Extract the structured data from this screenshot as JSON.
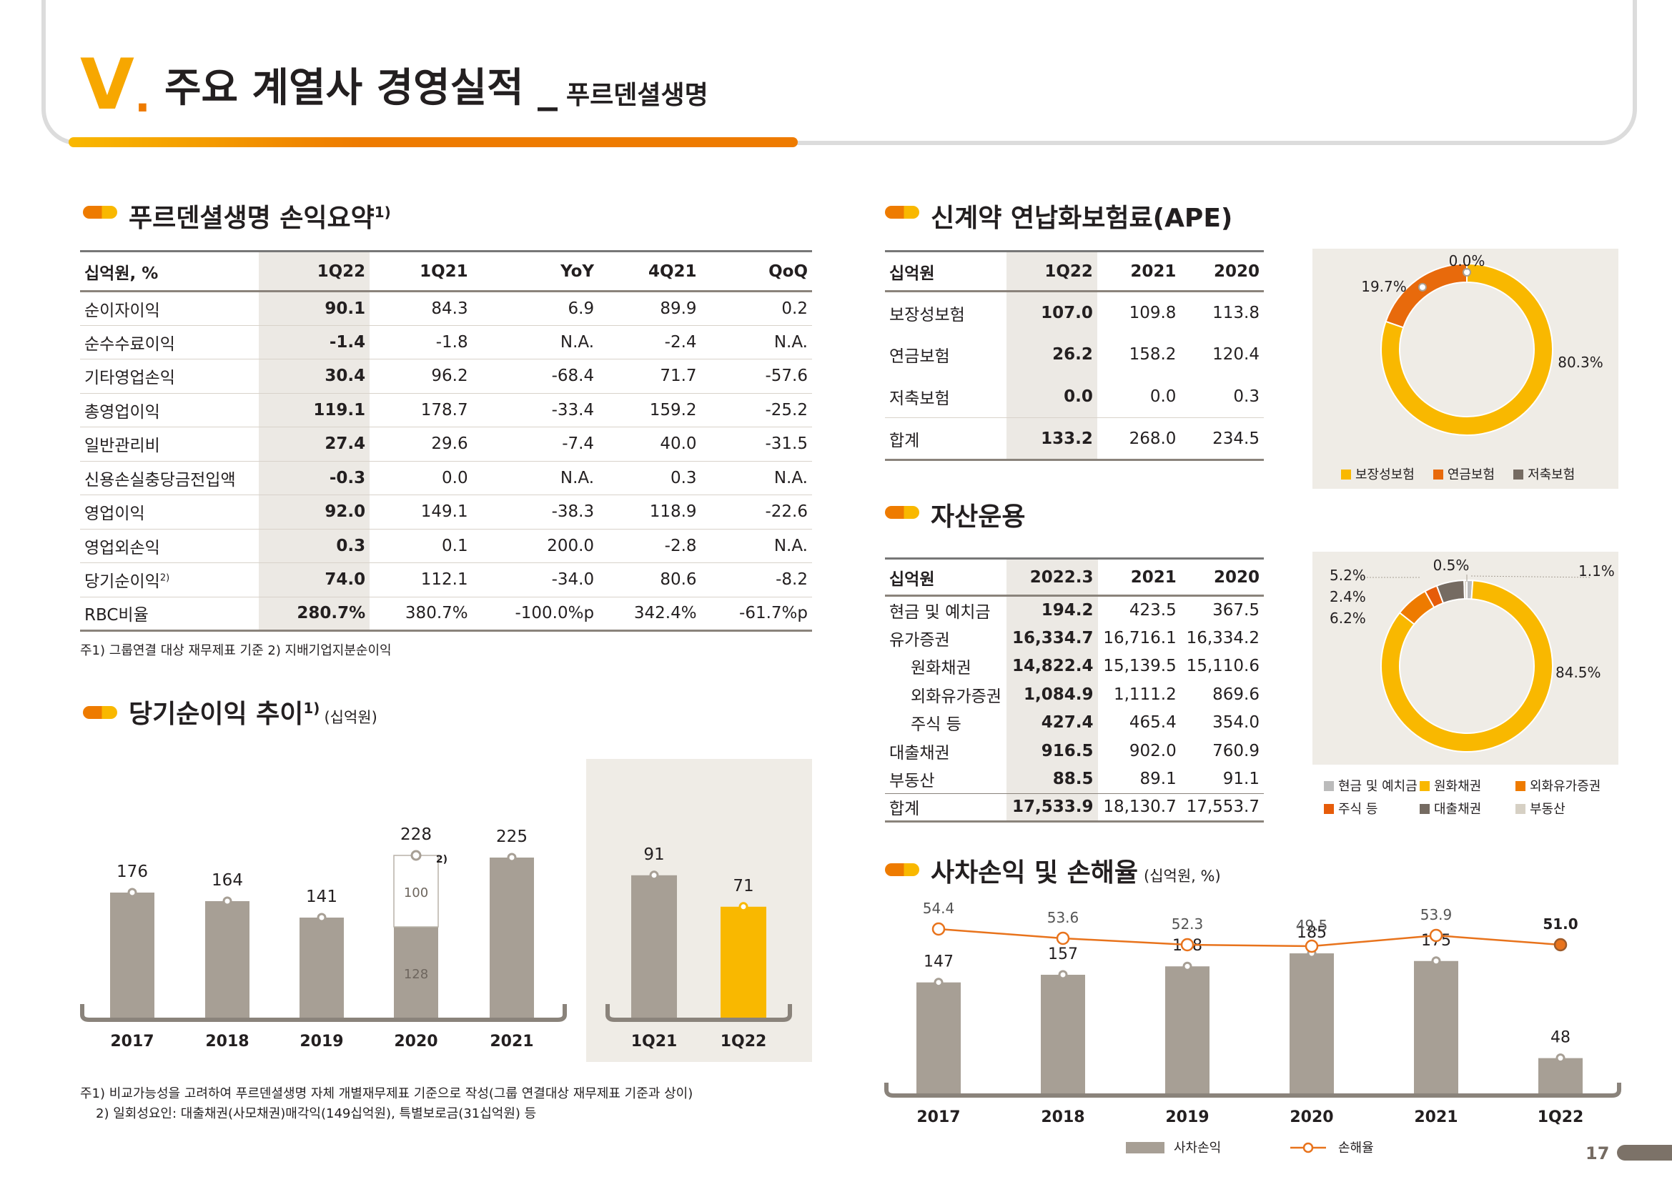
{
  "header": {
    "roman": "V",
    "roman_dot": ".",
    "title": "주요 계열사 경영실적",
    "dash": "_",
    "subtitle": "푸르덴셜생명"
  },
  "pl": {
    "title": "푸르덴셜생명 손익요약",
    "title_sup": "1)",
    "columns": [
      "십억원, %",
      "1Q22",
      "1Q21",
      "YoY",
      "4Q21",
      "QoQ"
    ],
    "rows": [
      {
        "label": "순이자이익",
        "sup": "",
        "v": [
          "90.1",
          "84.3",
          "6.9",
          "89.9",
          "0.2"
        ]
      },
      {
        "label": "순수수료이익",
        "sup": "",
        "v": [
          "-1.4",
          "-1.8",
          "N.A.",
          "-2.4",
          "N.A."
        ]
      },
      {
        "label": "기타영업손익",
        "sup": "",
        "v": [
          "30.4",
          "96.2",
          "-68.4",
          "71.7",
          "-57.6"
        ]
      },
      {
        "label": "총영업이익",
        "sup": "",
        "v": [
          "119.1",
          "178.7",
          "-33.4",
          "159.2",
          "-25.2"
        ]
      },
      {
        "label": "일반관리비",
        "sup": "",
        "v": [
          "27.4",
          "29.6",
          "-7.4",
          "40.0",
          "-31.5"
        ]
      },
      {
        "label": "신용손실충당금전입액",
        "sup": "",
        "v": [
          "-0.3",
          "0.0",
          "N.A.",
          "0.3",
          "N.A."
        ]
      },
      {
        "label": "영업이익",
        "sup": "",
        "v": [
          "92.0",
          "149.1",
          "-38.3",
          "118.9",
          "-22.6"
        ]
      },
      {
        "label": "영업외손익",
        "sup": "",
        "v": [
          "0.3",
          "0.1",
          "200.0",
          "-2.8",
          "N.A."
        ]
      },
      {
        "label": "당기순이익",
        "sup": "2)",
        "v": [
          "74.0",
          "112.1",
          "-34.0",
          "80.6",
          "-8.2"
        ]
      },
      {
        "label": "RBC비율",
        "sup": "",
        "v": [
          "280.7%",
          "380.7%",
          "-100.0%p",
          "342.4%",
          "-61.7%p"
        ]
      }
    ],
    "note": "주1) 그룹연결 대상 재무제표 기준   2) 지배기업지분순이익"
  },
  "ape": {
    "title": "신계약 연납화보험료(APE)",
    "columns": [
      "십억원",
      "1Q22",
      "2021",
      "2020"
    ],
    "rows": [
      {
        "label": "보장성보험",
        "v": [
          "107.0",
          "109.8",
          "113.8"
        ]
      },
      {
        "label": "연금보험",
        "v": [
          "26.2",
          "158.2",
          "120.4"
        ]
      },
      {
        "label": "저축보험",
        "v": [
          "0.0",
          "0.0",
          "0.3"
        ]
      },
      {
        "label": "합계",
        "v": [
          "133.2",
          "268.0",
          "234.5"
        ]
      }
    ]
  },
  "asset": {
    "title": "자산운용",
    "columns": [
      "십억원",
      "2022.3",
      "2021",
      "2020"
    ],
    "rows": [
      {
        "label": "현금 및 예치금",
        "indent": false,
        "v": [
          "194.2",
          "423.5",
          "367.5"
        ]
      },
      {
        "label": "유가증권",
        "indent": false,
        "v": [
          "16,334.7",
          "16,716.1",
          "16,334.2"
        ]
      },
      {
        "label": "원화채권",
        "indent": true,
        "v": [
          "14,822.4",
          "15,139.5",
          "15,110.6"
        ]
      },
      {
        "label": "외화유가증권",
        "indent": true,
        "v": [
          "1,084.9",
          "1,111.2",
          "869.6"
        ]
      },
      {
        "label": "주식 등",
        "indent": true,
        "v": [
          "427.4",
          "465.4",
          "354.0"
        ]
      },
      {
        "label": "대출채권",
        "indent": false,
        "v": [
          "916.5",
          "902.0",
          "760.9"
        ]
      },
      {
        "label": "부동산",
        "indent": false,
        "v": [
          "88.5",
          "89.1",
          "91.1"
        ]
      },
      {
        "label": "합계",
        "indent": false,
        "v": [
          "17,533.9",
          "18,130.7",
          "17,553.7"
        ]
      }
    ]
  },
  "ni": {
    "title": "당기순이익 추이",
    "title_sup": "1)",
    "unit": "(십억원)",
    "note1": "주1) 비교가능성을 고려하여 푸르덴셜생명 자체 개별재무제표 기준으로 작성(그룹 연결대상 재무제표 기준과 상이)",
    "note2": "2) 일회성요인: 대출채권(사모채권)매각익(149십억원), 특별보로금(31십억원) 등"
  },
  "loss": {
    "title": "사차손익 및 손해율",
    "unit": "(십억원, %)"
  },
  "page_number": "17",
  "chart_data": [
    {
      "id": "ni_annual",
      "type": "bar",
      "categories": [
        "2017",
        "2018",
        "2019",
        "2020",
        "2021"
      ],
      "values": [
        176,
        164,
        141,
        228,
        225
      ],
      "value_labels": [
        "176",
        "164",
        "141",
        "228",
        "225"
      ],
      "split_2020": {
        "base": 128,
        "one_off": 100,
        "note": "2)"
      },
      "color": "#a79f95",
      "ylim": [
        0,
        240
      ]
    },
    {
      "id": "ni_quarter",
      "type": "bar",
      "categories": [
        "1Q21",
        "1Q22"
      ],
      "values": [
        91,
        71
      ],
      "colors": [
        "#a79f95",
        "#f9b800"
      ],
      "ylim": [
        0,
        240
      ]
    },
    {
      "id": "ape_mix",
      "type": "pie",
      "labels": [
        "보장성보험",
        "연금보험",
        "저축보험"
      ],
      "values": [
        80.3,
        19.7,
        0.0
      ],
      "value_labels": [
        "80.3%",
        "19.7%",
        "0.0%"
      ],
      "colors": [
        "#f9b800",
        "#e86a0c",
        "#756b62"
      ]
    },
    {
      "id": "asset_mix",
      "type": "pie",
      "labels": [
        "현금 및 예치금",
        "원화채권",
        "외화유가증권",
        "주식 등",
        "대출채권",
        "부동산"
      ],
      "values": [
        1.1,
        84.5,
        6.2,
        2.4,
        5.2,
        0.5
      ],
      "value_labels": [
        "1.1%",
        "84.5%",
        "6.2%",
        "2.4%",
        "5.2%",
        "0.5%"
      ],
      "colors": [
        "#bbbbbb",
        "#f9b800",
        "#ee7b00",
        "#e65c0a",
        "#756b62",
        "#d6d0c4"
      ]
    },
    {
      "id": "loss",
      "type": "bar",
      "categories": [
        "2017",
        "2018",
        "2019",
        "2020",
        "2021",
        "1Q22"
      ],
      "series": [
        {
          "name": "사차손익",
          "type": "bar",
          "values": [
            147,
            157,
            168,
            185,
            175,
            48
          ]
        },
        {
          "name": "손해율",
          "type": "line",
          "values": [
            54.4,
            53.6,
            52.3,
            49.5,
            53.9,
            51.0
          ]
        }
      ],
      "bar_labels": [
        "147",
        "157",
        "168",
        "185",
        "175",
        "48"
      ],
      "line_labels": [
        "54.4",
        "53.6",
        "52.3",
        "49.5",
        "53.9",
        "51.0"
      ],
      "colors": {
        "bar": "#a79f95",
        "line": "#e8731c"
      }
    }
  ]
}
